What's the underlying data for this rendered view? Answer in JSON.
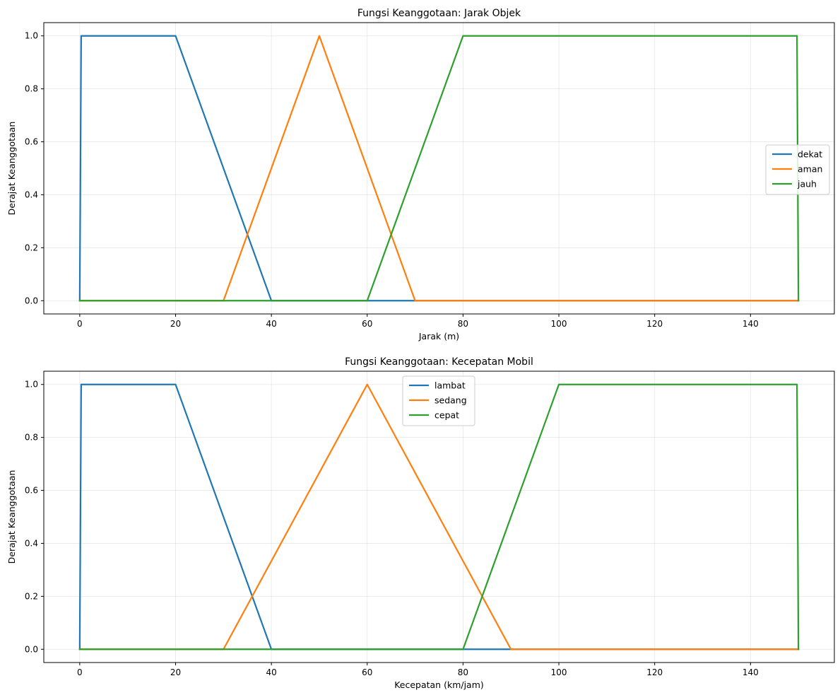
{
  "chart_data": [
    {
      "type": "line",
      "title": "Fungsi Keanggotaan: Jarak Objek",
      "xlabel": "Jarak (m)",
      "ylabel": "Derajat Keanggotaan",
      "xlim": [
        -7.5,
        157.5
      ],
      "ylim": [
        -0.05,
        1.05
      ],
      "xticks": [
        0,
        20,
        40,
        60,
        80,
        100,
        120,
        140
      ],
      "yticks": [
        0.0,
        0.2,
        0.4,
        0.6,
        0.8,
        1.0
      ],
      "grid": true,
      "legend_position": "center-right",
      "series": [
        {
          "name": "dekat",
          "color": "#1f77b4",
          "x": [
            0,
            0.3,
            20,
            40,
            70,
            150
          ],
          "y": [
            0,
            1,
            1,
            0,
            0,
            0
          ]
        },
        {
          "name": "aman",
          "color": "#ff7f0e",
          "x": [
            0,
            30,
            50,
            70,
            150
          ],
          "y": [
            0,
            0,
            1,
            0,
            0
          ]
        },
        {
          "name": "jauh",
          "color": "#2ca02c",
          "x": [
            0,
            60,
            80,
            149.7,
            150
          ],
          "y": [
            0,
            0,
            1,
            1,
            0
          ]
        }
      ]
    },
    {
      "type": "line",
      "title": "Fungsi Keanggotaan: Kecepatan Mobil",
      "xlabel": "Kecepatan (km/jam)",
      "ylabel": "Derajat Keanggotaan",
      "xlim": [
        -7.5,
        157.5
      ],
      "ylim": [
        -0.05,
        1.05
      ],
      "xticks": [
        0,
        20,
        40,
        60,
        80,
        100,
        120,
        140
      ],
      "yticks": [
        0.0,
        0.2,
        0.4,
        0.6,
        0.8,
        1.0
      ],
      "grid": true,
      "legend_position": "upper-center",
      "series": [
        {
          "name": "lambat",
          "color": "#1f77b4",
          "x": [
            0,
            0.3,
            20,
            40,
            90,
            150
          ],
          "y": [
            0,
            1,
            1,
            0,
            0,
            0
          ]
        },
        {
          "name": "sedang",
          "color": "#ff7f0e",
          "x": [
            0,
            30,
            60,
            90,
            150
          ],
          "y": [
            0,
            0,
            1,
            0,
            0
          ]
        },
        {
          "name": "cepat",
          "color": "#2ca02c",
          "x": [
            0,
            80,
            100,
            149.7,
            150
          ],
          "y": [
            0,
            0,
            1,
            1,
            0
          ]
        }
      ]
    }
  ]
}
